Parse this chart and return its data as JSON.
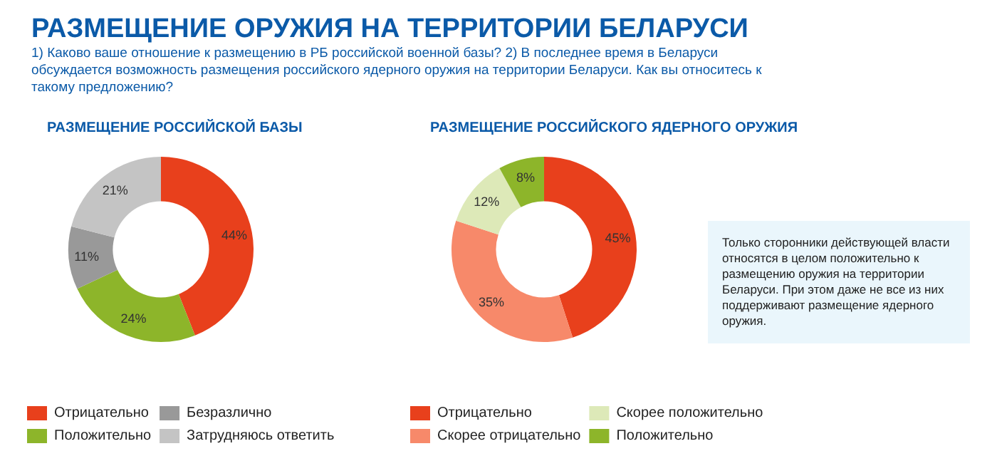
{
  "chart_data": [
    {
      "type": "other",
      "title": "РАЗМЕЩЕНИЕ ОРУЖИЯ НА ТЕРРИТОРИИ БЕЛАРУСИ",
      "subtitle": "1) Каково ваше отношение к размещению в РБ российской военной базы? 2) В последнее время в Беларуси обсуждается возможность размещения российского ядерного оружия на территории Беларуси. Как вы относитесь к такому предложению?"
    },
    {
      "type": "donut",
      "title": "РАЗМЕЩЕНИЕ РОССИЙСКОЙ БАЗЫ",
      "categories": [
        "Отрицательно",
        "Положительно",
        "Безразлично",
        "Затрудняюсь ответить"
      ],
      "values": [
        44,
        24,
        11,
        21
      ],
      "value_labels": [
        "44%",
        "24%",
        "11%",
        "21%"
      ],
      "colors": [
        "#e8401c",
        "#8db52a",
        "#999999",
        "#c4c4c4"
      ],
      "legend": "bottom"
    },
    {
      "type": "donut",
      "title": "РАЗМЕЩЕНИЕ РОССИЙСКОГО ЯДЕРНОГО ОРУЖИЯ",
      "categories": [
        "Отрицательно",
        "Скорее отрицательно",
        "Скорее положительно",
        "Положительно"
      ],
      "values": [
        45,
        35,
        12,
        8
      ],
      "value_labels": [
        "45%",
        "35%",
        "12%",
        "8%"
      ],
      "colors": [
        "#e8401c",
        "#f7896a",
        "#dde9b8",
        "#8db52a"
      ],
      "legend": "bottom"
    },
    {
      "type": "other",
      "annotations": [
        "Только сторонники действующей власти относятся в целом положительно к размещению оружия на территории Беларуси. При этом даже не все из них поддерживают размещение ядерного оружия."
      ]
    }
  ]
}
